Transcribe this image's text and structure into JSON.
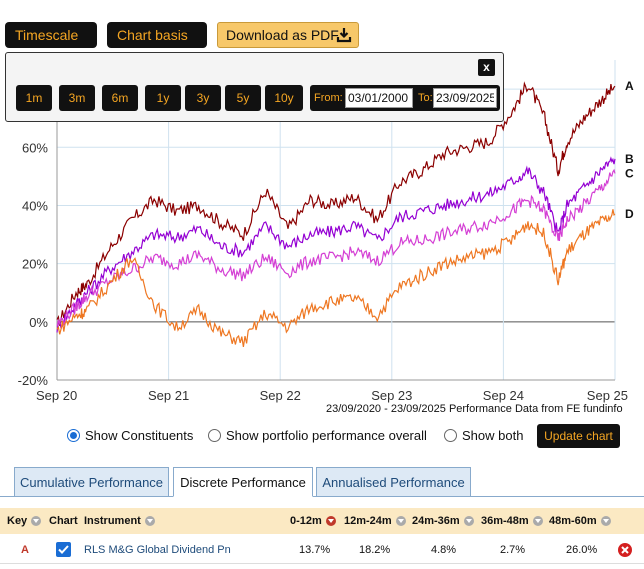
{
  "toolbar": {
    "timescale_label": "Timescale",
    "chart_basis_label": "Chart basis",
    "download_label": "Download as PDF"
  },
  "timescale_popup": {
    "buttons": [
      "1m",
      "3m",
      "6m",
      "1y",
      "3y",
      "5y",
      "10y"
    ],
    "from_label": "From:",
    "from_value": "03/01/2000",
    "to_label": "To:",
    "to_value": "23/09/2025",
    "close_label": "x"
  },
  "chart_data": {
    "type": "line",
    "title": "",
    "xlabel": "",
    "ylabel": "",
    "x_ticks": [
      "Sep 20",
      "Sep 21",
      "Sep 22",
      "Sep 23",
      "Sep 24",
      "Sep 25"
    ],
    "y_ticks": [
      "-20%",
      "0%",
      "20%",
      "40%",
      "60%"
    ],
    "ylim": [
      -20,
      90
    ],
    "grid": true,
    "series": [
      {
        "name": "A",
        "color": "#8b0000",
        "x": [
          2020.73,
          2020.9,
          2021.0,
          2021.2,
          2021.4,
          2021.6,
          2021.8,
          2022.0,
          2022.2,
          2022.4,
          2022.6,
          2022.8,
          2023.0,
          2023.2,
          2023.4,
          2023.6,
          2023.8,
          2024.0,
          2024.2,
          2024.4,
          2024.6,
          2024.8,
          2024.95,
          2025.1,
          2025.22,
          2025.3,
          2025.45,
          2025.6,
          2025.73
        ],
        "y": [
          -1,
          10,
          13,
          25,
          35,
          42,
          38,
          40,
          34,
          30,
          45,
          32,
          42,
          40,
          43,
          35,
          48,
          52,
          58,
          60,
          62,
          72,
          82,
          70,
          52,
          62,
          70,
          76,
          81
        ]
      },
      {
        "name": "B",
        "color": "#9400d3",
        "x": [
          2020.73,
          2020.9,
          2021.0,
          2021.2,
          2021.4,
          2021.6,
          2021.8,
          2022.0,
          2022.2,
          2022.4,
          2022.6,
          2022.8,
          2023.0,
          2023.2,
          2023.4,
          2023.6,
          2023.8,
          2024.0,
          2024.2,
          2024.4,
          2024.6,
          2024.8,
          2024.95,
          2025.1,
          2025.22,
          2025.3,
          2025.45,
          2025.6,
          2025.73
        ],
        "y": [
          -2,
          6,
          10,
          18,
          24,
          30,
          29,
          32,
          26,
          24,
          33,
          26,
          30,
          31,
          33,
          28,
          36,
          38,
          40,
          42,
          44,
          48,
          52,
          44,
          30,
          40,
          46,
          52,
          56
        ]
      },
      {
        "name": "C",
        "color": "#d43fd4",
        "x": [
          2020.73,
          2020.9,
          2021.0,
          2021.2,
          2021.4,
          2021.6,
          2021.8,
          2022.0,
          2022.2,
          2022.4,
          2022.6,
          2022.8,
          2023.0,
          2023.2,
          2023.4,
          2023.6,
          2023.8,
          2024.0,
          2024.2,
          2024.4,
          2024.6,
          2024.8,
          2024.95,
          2025.1,
          2025.22,
          2025.3,
          2025.45,
          2025.6,
          2025.73
        ],
        "y": [
          -1,
          5,
          9,
          14,
          18,
          22,
          20,
          23,
          18,
          16,
          22,
          17,
          21,
          22,
          24,
          21,
          27,
          28,
          30,
          32,
          34,
          38,
          42,
          38,
          28,
          35,
          40,
          46,
          51
        ]
      },
      {
        "name": "D",
        "color": "#ee7722",
        "x": [
          2020.73,
          2020.9,
          2021.0,
          2021.2,
          2021.4,
          2021.6,
          2021.8,
          2022.0,
          2022.2,
          2022.4,
          2022.6,
          2022.8,
          2023.0,
          2023.2,
          2023.4,
          2023.6,
          2023.8,
          2024.0,
          2024.2,
          2024.4,
          2024.6,
          2024.8,
          2024.95,
          2025.1,
          2025.22,
          2025.3,
          2025.45,
          2025.6,
          2025.73
        ],
        "y": [
          -3,
          2,
          4,
          13,
          22,
          6,
          -2,
          4,
          -4,
          -7,
          3,
          -2,
          5,
          7,
          8,
          2,
          12,
          16,
          20,
          22,
          24,
          28,
          34,
          30,
          14,
          24,
          30,
          34,
          37
        ]
      }
    ]
  },
  "chart_footnote": "23/09/2020 - 23/09/2025 Performance Data from FE fundinfo",
  "view_options": {
    "show_constituents": "Show Constituents",
    "show_portfolio": "Show portfolio performance overall",
    "show_both": "Show both",
    "selected": "show_constituents",
    "update_label": "Update chart"
  },
  "tabs": [
    "Cumulative Performance",
    "Discrete Performance",
    "Annualised Performance"
  ],
  "active_tab": 1,
  "table": {
    "headers": {
      "key": "Key",
      "chart": "Chart",
      "instrument": "Instrument",
      "p1": "0-12m",
      "p2": "12m-24m",
      "p3": "24m-36m",
      "p4": "36m-48m",
      "p5": "48m-60m"
    },
    "rows": [
      {
        "key": "A",
        "checked": true,
        "instrument": "RLS M&G Global Dividend Pn",
        "p1": "13.7%",
        "p2": "18.2%",
        "p3": "4.8%",
        "p4": "2.7%",
        "p5": "26.0%"
      }
    ]
  },
  "colors": {
    "accent": "#f5a623",
    "dark": "#111111",
    "header_bg": "#fbe9c3",
    "link": "#1e4b7a"
  }
}
